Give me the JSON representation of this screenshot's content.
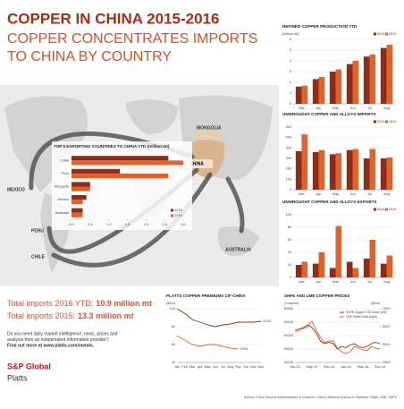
{
  "header": {
    "title": "COPPER IN CHINA 2015-2016",
    "subtitle": [
      "COPPER CONCENTRATES IMPORTS",
      "TO CHINA BY COUNTRY"
    ]
  },
  "map_labels": [
    "MEXICO",
    "PERU",
    "CHILE",
    "MONGOLIA",
    "CHINA",
    "AUSTRALIA"
  ],
  "totals": [
    {
      "label": "Total imports 2016 YTD:",
      "value": "10.9 million mt"
    },
    {
      "label": "Total imports 2015:",
      "value": "13.3 million mt"
    }
  ],
  "promo": [
    "Do you need daily market intelligence, news, prices and",
    "analysis from an independent information provider?",
    "Find out more at www.platts.com/metals."
  ],
  "logo": [
    "S&P Global",
    "Platts"
  ],
  "source": "Source: China General Administration of Customs, China's National Bureau of Statistics, Platts, LME, SHFE",
  "chart_data": [
    {
      "type": "hbar",
      "title": "TOP 5 EXPORTING COUNTRIES TO CHINA YTD (million mt)",
      "categories": [
        "Chile",
        "Peru",
        "Mongolia",
        "Mexico",
        "Australia"
      ],
      "series": [
        {
          "name": "2015",
          "color": "#8c2d19",
          "values": [
            2.6,
            1.3,
            0.5,
            0.4,
            0.3
          ]
        },
        {
          "name": "2016",
          "color": "#e0622c",
          "values": [
            3.0,
            2.6,
            0.5,
            0.3,
            0.3
          ]
        }
      ],
      "xlim": [
        0,
        3
      ],
      "xticks": [
        {
          "value": 0,
          "label": "0.0"
        },
        0.5,
        {
          "value": 1,
          "label": "1.0"
        },
        1.5,
        {
          "value": 2,
          "label": "2.0"
        },
        2.5,
        {
          "value": 3,
          "label": "3.0"
        }
      ]
    },
    {
      "type": "bar",
      "title": "REFINED COPPER PRODUCTION YTD",
      "ylabel": "(million mt)",
      "categories": [
        "Mar",
        "Apr",
        "May",
        "Jun",
        "Jul",
        "Aug"
      ],
      "series": [
        {
          "name": "2015",
          "color": "#8c2d19",
          "values": [
            1.6,
            2.3,
            3.0,
            3.7,
            4.4,
            5.2
          ]
        },
        {
          "name": "2016",
          "color": "#e0622c",
          "values": [
            1.7,
            2.5,
            3.2,
            4.0,
            4.6,
            5.5
          ]
        }
      ],
      "ylim": [
        0,
        6
      ],
      "yticks": [
        0,
        1,
        2,
        3,
        4,
        5,
        6
      ],
      "grid": true
    },
    {
      "type": "bar",
      "title": "UNWROUGHT COPPER AND ALLOYS IMPORTS",
      "categories": [
        "Mar",
        "Apr",
        "May",
        "Jun",
        "Jul",
        "Aug"
      ],
      "series": [
        {
          "name": "2015",
          "color": "#8c2d19",
          "values": [
            370,
            360,
            340,
            380,
            300,
            300
          ]
        },
        {
          "name": "2016",
          "color": "#e0622c",
          "values": [
            530,
            380,
            350,
            390,
            390,
            310
          ]
        }
      ],
      "ylim": [
        0,
        600
      ],
      "yticks": [
        0,
        100,
        200,
        300,
        400,
        500,
        600
      ],
      "grid": true
    },
    {
      "type": "bar",
      "title": "UNWROUGHT COPPER AND ALLOYS EXPORTS",
      "categories": [
        "Mar",
        "Apr",
        "May",
        "Jun",
        "Jul",
        "Aug"
      ],
      "series": [
        {
          "name": "2015",
          "color": "#8c2d19",
          "values": [
            20,
            22,
            15,
            25,
            30,
            22
          ]
        },
        {
          "name": "2016",
          "color": "#e0622c",
          "values": [
            25,
            40,
            82,
            15,
            60,
            35
          ]
        }
      ],
      "ylim": [
        0,
        100
      ],
      "yticks": [
        0,
        20,
        40,
        60,
        80,
        100
      ],
      "grid": true
    },
    {
      "type": "line",
      "title": "PLATTS COPPER PREMIUMS CIF CHINA",
      "ylabel": "($/mt)",
      "categories": [
        "Jan",
        "Feb",
        "Mar",
        "Apr",
        "May",
        "Jun",
        "Jul",
        "Aug",
        "Sep",
        "Oct",
        "Nov",
        "Dec"
      ],
      "series": [
        {
          "name": "2015",
          "color": "#8c2d19",
          "values": [
            100,
            95,
            88,
            85,
            82,
            80,
            82,
            83,
            85,
            85,
            85,
            86
          ]
        },
        {
          "name": "2016",
          "color": "#e0622c",
          "values": [
            70,
            65,
            60,
            58,
            60,
            60,
            58,
            56,
            55,
            null,
            null,
            null
          ]
        }
      ],
      "ylim": [
        40,
        100
      ],
      "yticks": [
        40,
        60,
        80,
        100
      ],
      "grid": true,
      "legend": "inline"
    },
    {
      "type": "line",
      "title": "SHFE AND LME COPPER PRICES",
      "ylabel": "(Yuan/mt)",
      "y2label": "($/mt)",
      "categories": [
        "Jan-15",
        null,
        null,
        null,
        "May-15",
        null,
        null,
        null,
        "Sep-15",
        null,
        null,
        null,
        "Jan-16",
        null,
        null,
        null,
        "May-16",
        null,
        null,
        null,
        "Sep-16"
      ],
      "series": [
        {
          "name": "SHFE Copper 3 M Close (left)",
          "color": "#8c2d19",
          "values": [
            42000,
            42500,
            43000,
            44000,
            43000,
            41000,
            38000,
            37000,
            37500,
            37000,
            35000,
            36000,
            35500,
            36500,
            37000,
            36000,
            35500,
            36000,
            37000,
            37500,
            37000
          ]
        },
        {
          "name": "LME Settle Daily (right)",
          "color": "#e0622c",
          "axis": "y2",
          "values": [
            5700,
            5800,
            5900,
            6000,
            6300,
            5800,
            5400,
            5100,
            5200,
            5200,
            4800,
            4600,
            4500,
            4600,
            4900,
            4800,
            4700,
            4650,
            4900,
            4800,
            4750
          ]
        }
      ],
      "ylim": [
        30000,
        50000
      ],
      "yticks": [
        30000,
        35000,
        40000,
        45000,
        50000
      ],
      "y2lim": [
        4000,
        7000
      ],
      "y2ticks": [
        4000,
        5000,
        6000,
        7000
      ],
      "grid": true,
      "legend": "upper right"
    }
  ]
}
